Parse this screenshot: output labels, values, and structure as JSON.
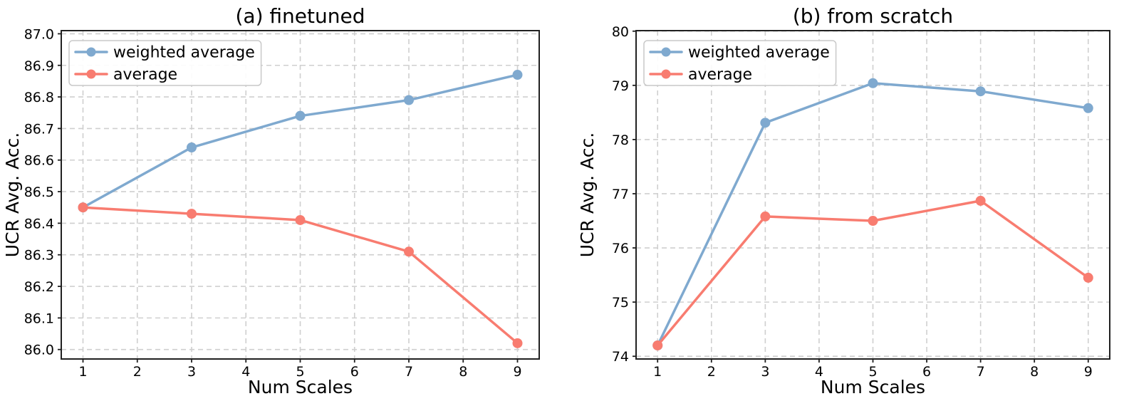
{
  "page": {
    "background": "#ffffff"
  },
  "style": {
    "grid_color": "#cfcfcf",
    "spine_color": "#212121",
    "text_color": "#000000",
    "legend_border_color": "#c9c9c9",
    "accent_blue": "#7FA9CF",
    "accent_salmon": "#F87C70"
  },
  "chart_data": [
    {
      "id": "a",
      "type": "line",
      "title": "(a) finetuned",
      "xlabel": "Num Scales",
      "ylabel": "UCR Avg. Acc.",
      "x": [
        1,
        3,
        5,
        7,
        9
      ],
      "series": [
        {
          "name": "weighted average",
          "color": "#7FA9CF",
          "values": [
            86.45,
            86.64,
            86.74,
            86.79,
            86.87
          ]
        },
        {
          "name": "average",
          "color": "#F87C70",
          "values": [
            86.45,
            86.43,
            86.41,
            86.31,
            86.02
          ]
        }
      ],
      "xticks": [
        1,
        2,
        3,
        4,
        5,
        6,
        7,
        8,
        9
      ],
      "xtick_labels": [
        "1",
        "2",
        "3",
        "4",
        "5",
        "6",
        "7",
        "8",
        "9"
      ],
      "yticks": [
        86.0,
        86.1,
        86.2,
        86.3,
        86.4,
        86.5,
        86.6,
        86.7,
        86.8,
        86.9,
        87.0
      ],
      "ytick_labels": [
        "86.0",
        "86.1",
        "86.2",
        "86.3",
        "86.4",
        "86.5",
        "86.6",
        "86.7",
        "86.8",
        "86.9",
        "87.0"
      ],
      "xlim": [
        0.6,
        9.4
      ],
      "ylim": [
        85.97,
        87.01
      ],
      "grid": true,
      "legend_position": "upper left",
      "legend_entries": [
        "weighted average",
        "average"
      ]
    },
    {
      "id": "b",
      "type": "line",
      "title": "(b) from scratch",
      "xlabel": "Num Scales",
      "ylabel": "UCR Avg. Acc.",
      "x": [
        1,
        3,
        5,
        7,
        9
      ],
      "series": [
        {
          "name": "weighted average",
          "color": "#7FA9CF",
          "values": [
            74.2,
            78.31,
            79.04,
            78.89,
            78.58
          ]
        },
        {
          "name": "average",
          "color": "#F87C70",
          "values": [
            74.2,
            76.58,
            76.5,
            76.87,
            75.45
          ]
        }
      ],
      "xticks": [
        1,
        2,
        3,
        4,
        5,
        6,
        7,
        8,
        9
      ],
      "xtick_labels": [
        "1",
        "2",
        "3",
        "4",
        "5",
        "6",
        "7",
        "8",
        "9"
      ],
      "yticks": [
        74,
        75,
        76,
        77,
        78,
        79,
        80
      ],
      "ytick_labels": [
        "74",
        "75",
        "76",
        "77",
        "78",
        "79",
        "80"
      ],
      "xlim": [
        0.6,
        9.4
      ],
      "ylim": [
        73.95,
        80.01
      ],
      "grid": true,
      "legend_position": "upper left",
      "legend_entries": [
        "weighted average",
        "average"
      ]
    }
  ]
}
